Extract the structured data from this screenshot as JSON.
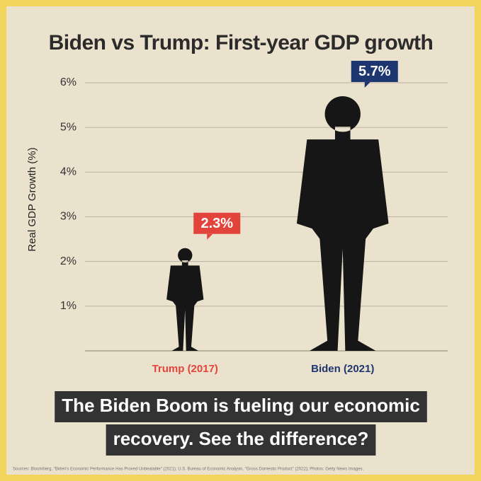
{
  "chart_data": {
    "type": "pictogram",
    "title": "Biden vs Trump: First-year GDP growth",
    "y_label": "Real GDP Growth (%)",
    "categories": [
      "Trump (2017)",
      "Biden (2021)"
    ],
    "category_colors": [
      "#e2433b",
      "#1e3670"
    ],
    "values": [
      2.3,
      5.7
    ],
    "value_labels": [
      "2.3%",
      "5.7%"
    ],
    "color": "#161616",
    "ylim": [
      0,
      6
    ],
    "yticks": [
      {
        "value": 1,
        "label": "1%"
      },
      {
        "value": 2,
        "label": "2%"
      },
      {
        "value": 3,
        "label": "3%"
      },
      {
        "value": 4,
        "label": "4%"
      },
      {
        "value": 5,
        "label": "5%"
      },
      {
        "value": 6,
        "label": "6%"
      }
    ],
    "grid": true,
    "caption": [
      "The Biden Boom is fueling our economic",
      "recovery. See the difference?"
    ],
    "source": "Sources: Bloomberg, \"Biden's Economic Performance Has Proved Unbeatable\" (2021); U.S. Bureau of Economic Analysis, \"Gross Domestic Product\" (2022); Photos: Getty News Images."
  }
}
